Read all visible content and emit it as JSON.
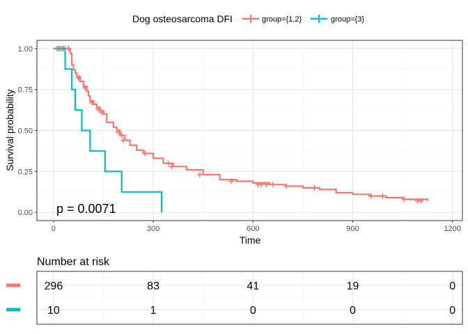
{
  "legend": {
    "title": "Dog osteosarcoma DFI",
    "items": [
      {
        "label": "group={1,2}",
        "color": "#F8766D"
      },
      {
        "label": "group={3}",
        "color": "#00BFC4"
      }
    ]
  },
  "chart_data": [
    {
      "type": "line",
      "subtype": "kaplan-meier",
      "xlabel": "Time",
      "ylabel": "Survival probability",
      "xlim": [
        -50,
        1230
      ],
      "ylim": [
        -0.05,
        1.05
      ],
      "x_ticks": [
        0,
        300,
        600,
        900,
        1200
      ],
      "x_tick_labels": [
        "0",
        "300",
        "600",
        "900",
        "1200"
      ],
      "y_ticks": [
        0,
        0.25,
        0.5,
        0.75,
        1.0
      ],
      "y_tick_labels": [
        "0.00",
        "0.25",
        "0.50",
        "0.75",
        "1.00"
      ],
      "grid": true,
      "legend_position": "top",
      "annotation": "p = 0.0071",
      "series": [
        {
          "name": "group={1,2}",
          "color": "#F8766D",
          "x": [
            0,
            50,
            55,
            60,
            65,
            70,
            80,
            90,
            100,
            105,
            110,
            120,
            130,
            140,
            150,
            160,
            180,
            190,
            200,
            215,
            230,
            250,
            270,
            300,
            330,
            360,
            400,
            450,
            500,
            550,
            600,
            650,
            700,
            750,
            800,
            850,
            900,
            950,
            1000,
            1050,
            1125
          ],
          "y": [
            1.0,
            0.97,
            0.9,
            0.87,
            0.85,
            0.83,
            0.8,
            0.77,
            0.74,
            0.71,
            0.68,
            0.66,
            0.64,
            0.62,
            0.6,
            0.55,
            0.52,
            0.5,
            0.47,
            0.44,
            0.41,
            0.38,
            0.36,
            0.33,
            0.3,
            0.28,
            0.26,
            0.23,
            0.2,
            0.19,
            0.18,
            0.17,
            0.16,
            0.15,
            0.14,
            0.12,
            0.11,
            0.1,
            0.09,
            0.08,
            0.07
          ],
          "censor_x": [
            10,
            20,
            25,
            35,
            45,
            75,
            95,
            115,
            135,
            145,
            195,
            205,
            210,
            275,
            345,
            355,
            440,
            535,
            615,
            625,
            640,
            660,
            700,
            785,
            955,
            990,
            1055,
            1095,
            1105
          ],
          "censor_y": [
            1.0,
            1.0,
            1.0,
            1.0,
            1.0,
            0.82,
            0.76,
            0.67,
            0.63,
            0.61,
            0.49,
            0.47,
            0.44,
            0.36,
            0.3,
            0.28,
            0.23,
            0.19,
            0.17,
            0.17,
            0.17,
            0.17,
            0.16,
            0.15,
            0.1,
            0.1,
            0.08,
            0.07,
            0.07
          ]
        },
        {
          "name": "group={3}",
          "color": "#00BFC4",
          "x": [
            0,
            35,
            55,
            65,
            85,
            110,
            155,
            205,
            325
          ],
          "y": [
            1.0,
            0.875,
            0.75,
            0.625,
            0.5,
            0.375,
            0.25,
            0.125,
            0.0
          ],
          "censor_x": [
            15,
            30
          ],
          "censor_y": [
            1.0,
            1.0
          ]
        }
      ]
    },
    {
      "type": "table",
      "title": "Number at risk",
      "x_ticks": [
        0,
        300,
        600,
        900,
        1200
      ],
      "rows": [
        {
          "group": "group={1,2}",
          "color": "#F8766D",
          "values": [
            "296",
            "83",
            "41",
            "19",
            "0"
          ]
        },
        {
          "group": "group={3}",
          "color": "#00BFC4",
          "values": [
            "10",
            "1",
            "0",
            "0",
            "0"
          ]
        }
      ]
    }
  ]
}
